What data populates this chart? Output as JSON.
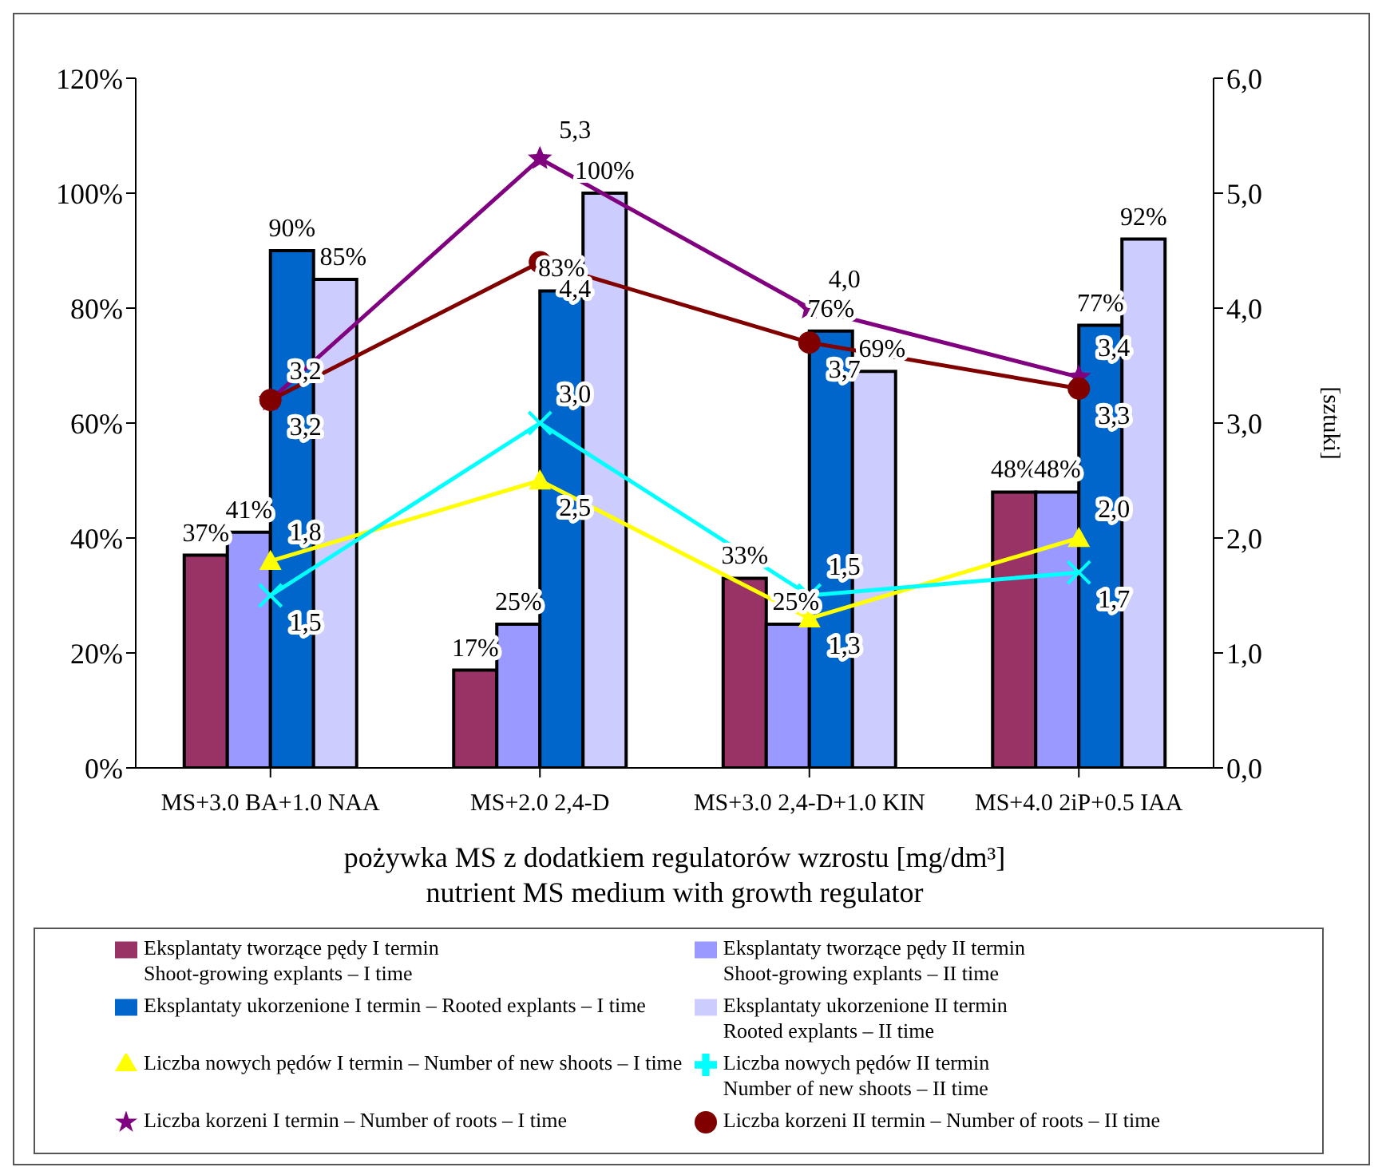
{
  "chart_data": {
    "type": "bar",
    "categories": [
      "MS+3.0 BA+1.0 NAA",
      "MS+2.0 2,4-D",
      "MS+3.0 2,4-D+1.0 KIN",
      "MS+4.0 2iP+0.5 IAA"
    ],
    "xlabel": "pożywka MS z dodatkiem regulatorów wzrostu  [mg/dm³]\nnutrient MS medium with growth regulator",
    "y2label": "[sztuki]",
    "ylim": [
      0,
      120
    ],
    "yticks": [
      {
        "value": 0,
        "label": "0%"
      },
      {
        "value": 20,
        "label": "20%"
      },
      {
        "value": 40,
        "label": "40%"
      },
      {
        "value": 60,
        "label": "60%"
      },
      {
        "value": 80,
        "label": "80%"
      },
      {
        "value": 100,
        "label": "100%"
      },
      {
        "value": 120,
        "label": "120%"
      }
    ],
    "y2lim": [
      0,
      6
    ],
    "y2ticks": [
      {
        "value": 0,
        "label": "0,0"
      },
      {
        "value": 1,
        "label": "1,0"
      },
      {
        "value": 2,
        "label": "2,0"
      },
      {
        "value": 3,
        "label": "3,0"
      },
      {
        "value": 4,
        "label": "4,0"
      },
      {
        "value": 5,
        "label": "5,0"
      },
      {
        "value": 6,
        "label": "6,0"
      }
    ],
    "grid": false,
    "legend": "bottom",
    "series": [
      {
        "name": "Eksplantaty tworzące pędy I termin\nShoot-growing explants – I time",
        "color": "#993366",
        "values": [
          37,
          17,
          33,
          48
        ],
        "value_labels": [
          "37%",
          "17%",
          "33%",
          "48%"
        ]
      },
      {
        "name": "Eksplantaty tworzące pędy II termin\nShoot-growing explants – II time",
        "color": "#9999ff",
        "values": [
          41,
          25,
          25,
          48
        ],
        "value_labels": [
          "41%",
          "25%",
          "25%",
          "48%"
        ]
      },
      {
        "name": "Eksplantaty ukorzenione I termin – Rooted explants – I time",
        "color": "#0066cc",
        "values": [
          90,
          83,
          76,
          77
        ],
        "value_labels": [
          "90%",
          "83%",
          "76%",
          "77%"
        ]
      },
      {
        "name": "Eksplantaty ukorzenione II termin\nRooted explants – II time",
        "color": "#ccccff",
        "values": [
          85,
          100,
          69,
          92
        ],
        "value_labels": [
          "85%",
          "100%",
          "69%",
          "92%"
        ]
      },
      {
        "name": "Liczba nowych pędów I termin – Number of new shoots – I time",
        "type": "line",
        "axis": "y2",
        "marker": "triangle",
        "color": "#ffff00",
        "values": [
          1.8,
          2.5,
          1.3,
          2.0
        ],
        "value_labels": [
          "1,8",
          "2,5",
          "1,3",
          "2,0"
        ]
      },
      {
        "name": "Liczba nowych pędów II termin\nNumber of new shoots – II time",
        "type": "line",
        "axis": "y2",
        "marker": "cross",
        "color": "#00ffff",
        "values": [
          1.5,
          3.0,
          1.5,
          1.7
        ],
        "value_labels": [
          "1,5",
          "3,0",
          "1,5",
          "1,7"
        ]
      },
      {
        "name": "Liczba korzeni I termin – Number of roots – I time",
        "type": "line",
        "axis": "y2",
        "marker": "star",
        "color": "#800080",
        "values": [
          3.2,
          5.3,
          4.0,
          3.4
        ],
        "value_labels": [
          "3,2",
          "5,3",
          "4,0",
          "3,4"
        ]
      },
      {
        "name": "Liczba korzeni II termin – Number of roots – II time",
        "type": "line",
        "axis": "y2",
        "marker": "circle",
        "color": "#800000",
        "values": [
          3.2,
          4.4,
          3.7,
          3.3
        ],
        "value_labels": [
          "3,2",
          "4,4",
          "3,7",
          "3,3"
        ]
      }
    ]
  }
}
